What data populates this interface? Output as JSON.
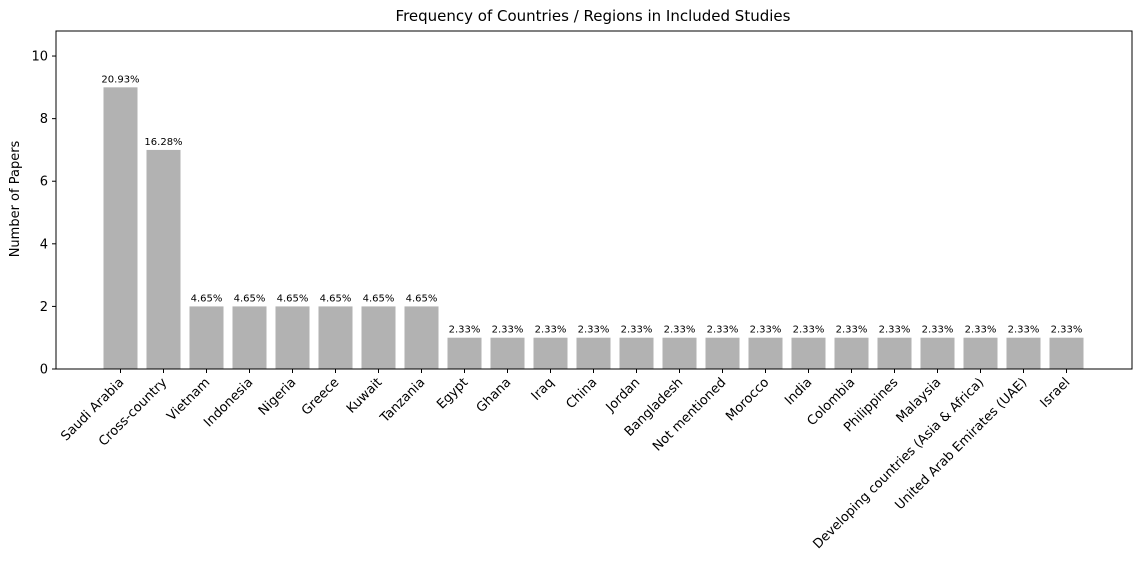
{
  "chart_data": {
    "type": "bar",
    "title": "Frequency of Countries / Regions in Included Studies",
    "xlabel": "",
    "ylabel": "Number of Papers",
    "ylim": [
      0,
      10.8
    ],
    "yticks": [
      "0",
      "2",
      "4",
      "6",
      "8",
      "10"
    ],
    "grid": false,
    "bar_color": "#b2b2b2",
    "categories": [
      "Saudi Arabia",
      "Cross-country",
      "Vietnam",
      "Indonesia",
      "Nigeria",
      "Greece",
      "Kuwait",
      "Tanzania",
      "Egypt",
      "Ghana",
      "Iraq",
      "China",
      "Jordan",
      "Bangladesh",
      "Not mentioned",
      "Morocco",
      "India",
      "Colombia",
      "Philippines",
      "Malaysia",
      "Developing countries (Asia & Africa)",
      "United Arab Emirates (UAE)",
      "Israel"
    ],
    "values": [
      9,
      7,
      2,
      2,
      2,
      2,
      2,
      2,
      1,
      1,
      1,
      1,
      1,
      1,
      1,
      1,
      1,
      1,
      1,
      1,
      1,
      1,
      1
    ],
    "data_labels": [
      "20.93%",
      "16.28%",
      "4.65%",
      "4.65%",
      "4.65%",
      "4.65%",
      "4.65%",
      "4.65%",
      "2.33%",
      "2.33%",
      "2.33%",
      "2.33%",
      "2.33%",
      "2.33%",
      "2.33%",
      "2.33%",
      "2.33%",
      "2.33%",
      "2.33%",
      "2.33%",
      "2.33%",
      "2.33%",
      "2.33%"
    ]
  }
}
